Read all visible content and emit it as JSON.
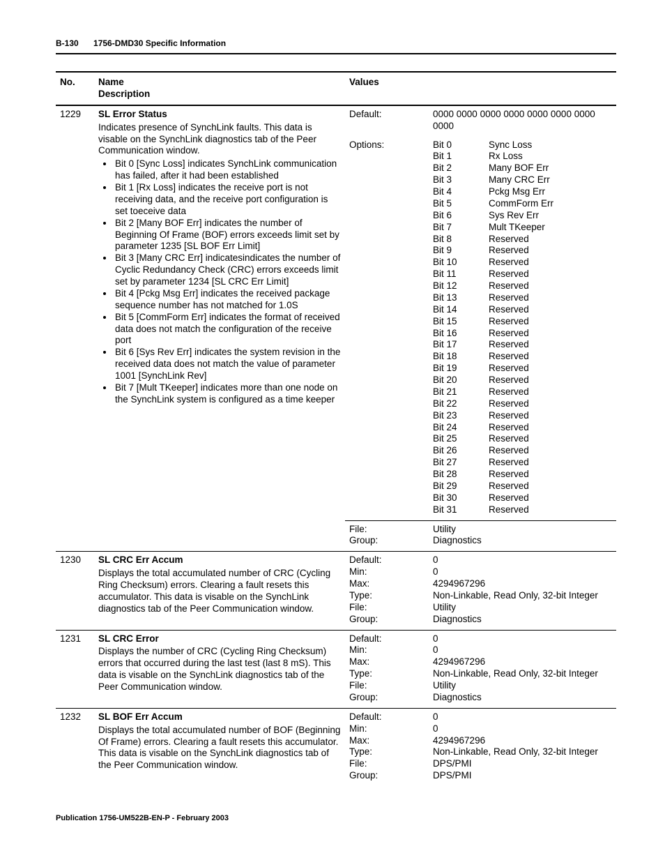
{
  "header": {
    "page_label": "B-130",
    "section_title": "1756-DMD30 Specific Information"
  },
  "table": {
    "head": {
      "no": "No.",
      "name": "Name",
      "desc": "Description",
      "values": "Values"
    },
    "rows": [
      {
        "no": "1229",
        "name": "SL Error Status",
        "desc_intro": "Indicates presence of SynchLink faults.  This data is visable on the SynchLink diagnostics tab of the Peer Communication window.",
        "bullets": [
          "Bit 0 [Sync Loss] indicates SynchLink communication has failed, after it had been established",
          "Bit 1 [Rx Loss] indicates the receive port is not receiving data, and the receive port configuration is set toeceive data",
          "Bit 2 [Many BOF Err] indicates the number of Beginning Of Frame (BOF) errors exceeds limit set by parameter 1235 [SL BOF Err Limit]",
          "Bit 3 [Many CRC Err] indicatesindicates the number of Cyclic Redundancy Check (CRC) errors exceeds limit set by parameter 1234 [SL CRC Err Limit]",
          "Bit 4 [Pckg Msg Err] indicates the received package sequence number has not matched for 1.0S",
          "Bit 5 [CommForm Err] indicates the format of received data does not match the configuration of the receive port",
          "Bit 6 [Sys Rev Err] indicates the system revision in the received data does not match the value of parameter 1001 [SynchLink Rev]",
          "Bit 7 [Mult TKeeper] indicates more than one node on the SynchLink system is configured as a time keeper"
        ],
        "value_rows": [
          {
            "labels": [
              "Default:"
            ],
            "data": [
              "0000 0000 0000 0000 0000 0000 0000 0000"
            ]
          },
          {
            "labels": [
              "Options:"
            ],
            "bit_list": {
              "bits": [
                "Bit 0",
                "Bit 1",
                "Bit 2",
                "Bit 3",
                "Bit 4",
                "Bit 5",
                "Bit 6",
                "Bit 7",
                "Bit 8",
                "Bit 9",
                "Bit 10",
                "Bit 11",
                "Bit 12",
                "Bit 13",
                "Bit 14",
                "Bit 15",
                "Bit 16",
                "Bit 17",
                "Bit 18",
                "Bit 19",
                "Bit 20",
                "Bit 21",
                "Bit 22",
                "Bit 23",
                "Bit 24",
                "Bit 25",
                "Bit 26",
                "Bit 27",
                "Bit 28",
                "Bit 29",
                "Bit 30",
                "Bit 31"
              ],
              "names": [
                "Sync Loss",
                "Rx Loss",
                "Many BOF Err",
                "Many CRC Err",
                "Pckg Msg Err",
                "CommForm Err",
                "Sys Rev Err",
                "Mult TKeeper",
                "Reserved",
                "Reserved",
                "Reserved",
                "Reserved",
                "Reserved",
                "Reserved",
                "Reserved",
                "Reserved",
                "Reserved",
                "Reserved",
                "Reserved",
                "Reserved",
                "Reserved",
                "Reserved",
                "Reserved",
                "Reserved",
                "Reserved",
                "Reserved",
                "Reserved",
                "Reserved",
                "Reserved",
                "Reserved",
                "Reserved",
                "Reserved"
              ]
            }
          },
          {
            "labels": [
              "File:",
              "Group:"
            ],
            "data": [
              "Utility",
              "Diagnostics"
            ],
            "sub_sep": true
          }
        ]
      },
      {
        "no": "1230",
        "name": "SL CRC Err Accum",
        "desc_intro": "Displays the total accumulated number of CRC (Cycling Ring Checksum) errors.  Clearing a fault resets this accumulator.  This data is visable on the SynchLink diagnostics tab of the Peer Communication window.",
        "value_rows": [
          {
            "labels": [
              "Default:",
              "Min:",
              "Max:",
              "Type:",
              "File:",
              "Group:"
            ],
            "data": [
              "0",
              "0",
              "4294967296",
              "Non-Linkable, Read Only, 32-bit Integer",
              "Utility",
              "Diagnostics"
            ]
          }
        ]
      },
      {
        "no": "1231",
        "name": "SL CRC Error",
        "desc_intro": "Displays the number of CRC (Cycling Ring Checksum) errors that occurred during the last test (last 8 mS).  This data is visable on the SynchLink diagnostics tab of the Peer Communication window.",
        "value_rows": [
          {
            "labels": [
              "Default:",
              "Min:",
              "Max:",
              "Type:",
              "File:",
              "Group:"
            ],
            "data": [
              "0",
              "0",
              "4294967296",
              "Non-Linkable, Read Only, 32-bit Integer",
              "Utility",
              "Diagnostics"
            ]
          }
        ]
      },
      {
        "no": "1232",
        "name": "SL BOF Err Accum",
        "desc_intro": "Displays the total accumulated number of BOF (Beginning Of Frame) errors.  Clearing a fault resets this accumulator. This data is visable on the SynchLink diagnostics tab of the Peer Communication window.",
        "value_rows": [
          {
            "labels": [
              "Default:",
              "Min:",
              "Max:",
              "Type:",
              "File:",
              "Group:"
            ],
            "data": [
              "0",
              "0",
              "4294967296",
              "Non-Linkable, Read Only, 32-bit Integer",
              "DPS/PMI",
              "DPS/PMI"
            ]
          }
        ]
      }
    ]
  },
  "footer": "Publication 1756-UM522B-EN-P - February 2003"
}
